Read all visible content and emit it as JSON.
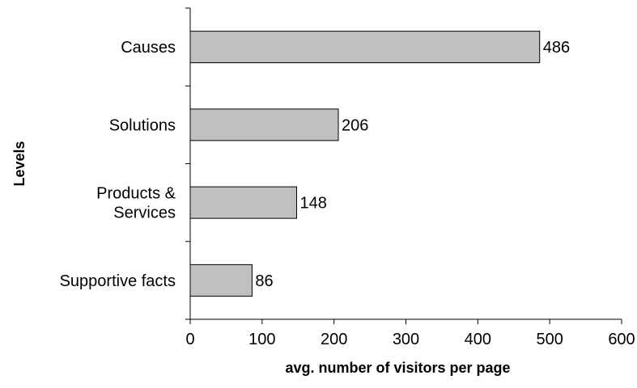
{
  "chart_data": {
    "type": "bar",
    "orientation": "horizontal",
    "categories": [
      [
        "Causes"
      ],
      [
        "Solutions"
      ],
      [
        "Products &",
        "Services"
      ],
      [
        "Supportive facts"
      ]
    ],
    "values": [
      486,
      206,
      148,
      86
    ],
    "value_labels": [
      "486",
      "206",
      "148",
      "86"
    ],
    "xlabel": "avg. number of visitors per page",
    "ylabel": "Levels",
    "xlim": [
      0,
      600
    ],
    "xticks": [
      0,
      100,
      200,
      300,
      400,
      500,
      600
    ],
    "xtick_labels": [
      "0",
      "100",
      "200",
      "300",
      "400",
      "500",
      "600"
    ],
    "grid": false,
    "legend": "none",
    "bar_color": "#c0c0c0",
    "bar_border_color": "#000000"
  }
}
